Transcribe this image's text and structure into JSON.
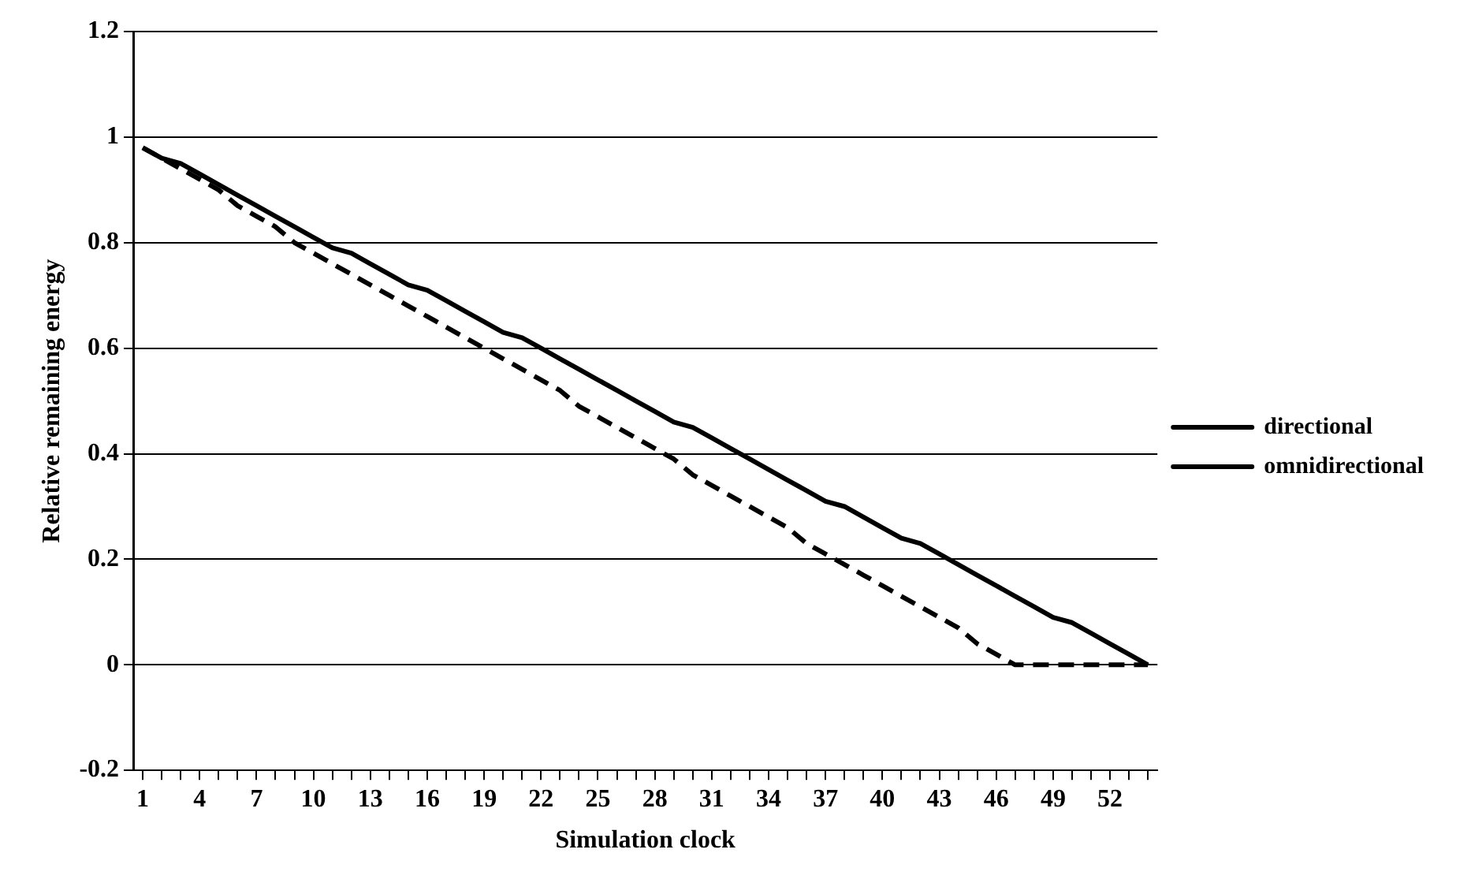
{
  "chart_data": {
    "type": "line",
    "xlabel": "Simulation clock",
    "ylabel": "Relative remaining energy",
    "categories": [
      "1",
      null,
      null,
      "4",
      null,
      null,
      "7",
      null,
      null,
      "10",
      null,
      null,
      "13",
      null,
      null,
      "16",
      null,
      null,
      "19",
      null,
      null,
      "22",
      null,
      null,
      "25",
      null,
      null,
      "28",
      null,
      null,
      "31",
      null,
      null,
      "34",
      null,
      null,
      "37",
      null,
      null,
      "40",
      null,
      null,
      "43",
      null,
      null,
      "46",
      null,
      null,
      "49",
      null,
      null,
      "52",
      null,
      null
    ],
    "series": [
      {
        "name": "directional",
        "color": "#000000",
        "line_style": "solid",
        "values": [
          0.98,
          0.96,
          0.95,
          0.93,
          0.91,
          0.89,
          0.87,
          0.85,
          0.83,
          0.81,
          0.79,
          0.78,
          0.76,
          0.74,
          0.72,
          0.71,
          0.69,
          0.67,
          0.65,
          0.63,
          0.62,
          0.6,
          0.58,
          0.56,
          0.54,
          0.52,
          0.5,
          0.48,
          0.46,
          0.45,
          0.43,
          0.41,
          0.39,
          0.37,
          0.35,
          0.33,
          0.31,
          0.3,
          0.28,
          0.26,
          0.24,
          0.23,
          0.21,
          0.19,
          0.17,
          0.15,
          0.13,
          0.11,
          0.09,
          0.08,
          0.06,
          0.04,
          0.02,
          0
        ]
      },
      {
        "name": "omnidirectional",
        "color": "#000000",
        "line_style": "dashed",
        "values": [
          0.98,
          0.96,
          0.94,
          0.92,
          0.9,
          0.87,
          0.85,
          0.83,
          0.8,
          0.78,
          0.76,
          0.74,
          0.72,
          0.7,
          0.68,
          0.66,
          0.64,
          0.62,
          0.6,
          0.58,
          0.56,
          0.54,
          0.52,
          0.49,
          0.47,
          0.45,
          0.43,
          0.41,
          0.39,
          0.36,
          0.34,
          0.32,
          0.3,
          0.28,
          0.26,
          0.23,
          0.21,
          0.19,
          0.17,
          0.15,
          0.13,
          0.11,
          0.09,
          0.07,
          0.04,
          0.02,
          0,
          0,
          0,
          0,
          0,
          0,
          0,
          0
        ]
      }
    ],
    "ylim": [
      -0.2,
      1.2
    ],
    "yticks": [
      -0.2,
      0,
      0.2,
      0.4,
      0.6,
      0.8,
      1,
      1.2
    ],
    "grid": "y",
    "legend": "right",
    "marker": "none"
  }
}
